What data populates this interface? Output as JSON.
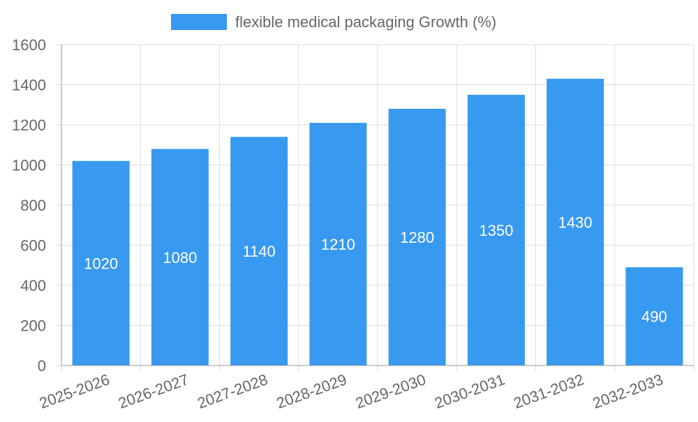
{
  "chart_data": {
    "type": "bar",
    "categories": [
      "2025-2026",
      "2026-2027",
      "2027-2028",
      "2028-2029",
      "2029-2030",
      "2030-2031",
      "2031-2032",
      "2032-2033"
    ],
    "series": [
      {
        "name": "flexible medical packaging Growth (%)",
        "values": [
          1020,
          1080,
          1140,
          1210,
          1280,
          1350,
          1430,
          490
        ],
        "color": "#3899f0"
      }
    ],
    "title": "",
    "xlabel": "",
    "ylabel": "",
    "ylim": [
      0,
      1600
    ],
    "yticks": [
      0,
      200,
      400,
      600,
      800,
      1000,
      1200,
      1400,
      1600
    ],
    "grid": true,
    "legend": "top-center",
    "data_labels": true,
    "x_tick_rotation": "angled"
  }
}
